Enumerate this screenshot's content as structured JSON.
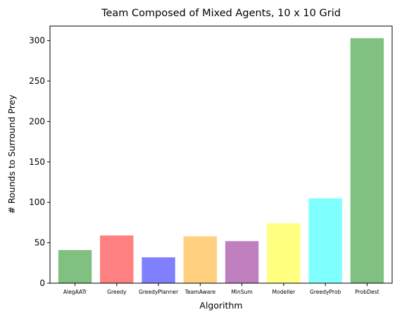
{
  "chart_data": {
    "type": "bar",
    "title": "Team Composed of Mixed Agents, 10 x 10 Grid",
    "xlabel": "Algorithm",
    "ylabel": "# Rounds to Surround Prey",
    "categories": [
      "AlegAATr",
      "Greedy",
      "GreedyPlanner",
      "TeamAware",
      "MinSum",
      "Modeller",
      "GreedyProb",
      "ProbDest"
    ],
    "values": [
      41,
      59,
      32,
      58,
      52,
      74,
      105,
      303
    ],
    "colors": [
      "#80c080",
      "#ff8080",
      "#8080ff",
      "#ffd080",
      "#c080c0",
      "#ffff80",
      "#80ffff",
      "#80c080"
    ],
    "ylim": [
      0,
      318
    ],
    "yticks": [
      0,
      50,
      100,
      150,
      200,
      250,
      300
    ],
    "grid": false,
    "legend": "none"
  }
}
